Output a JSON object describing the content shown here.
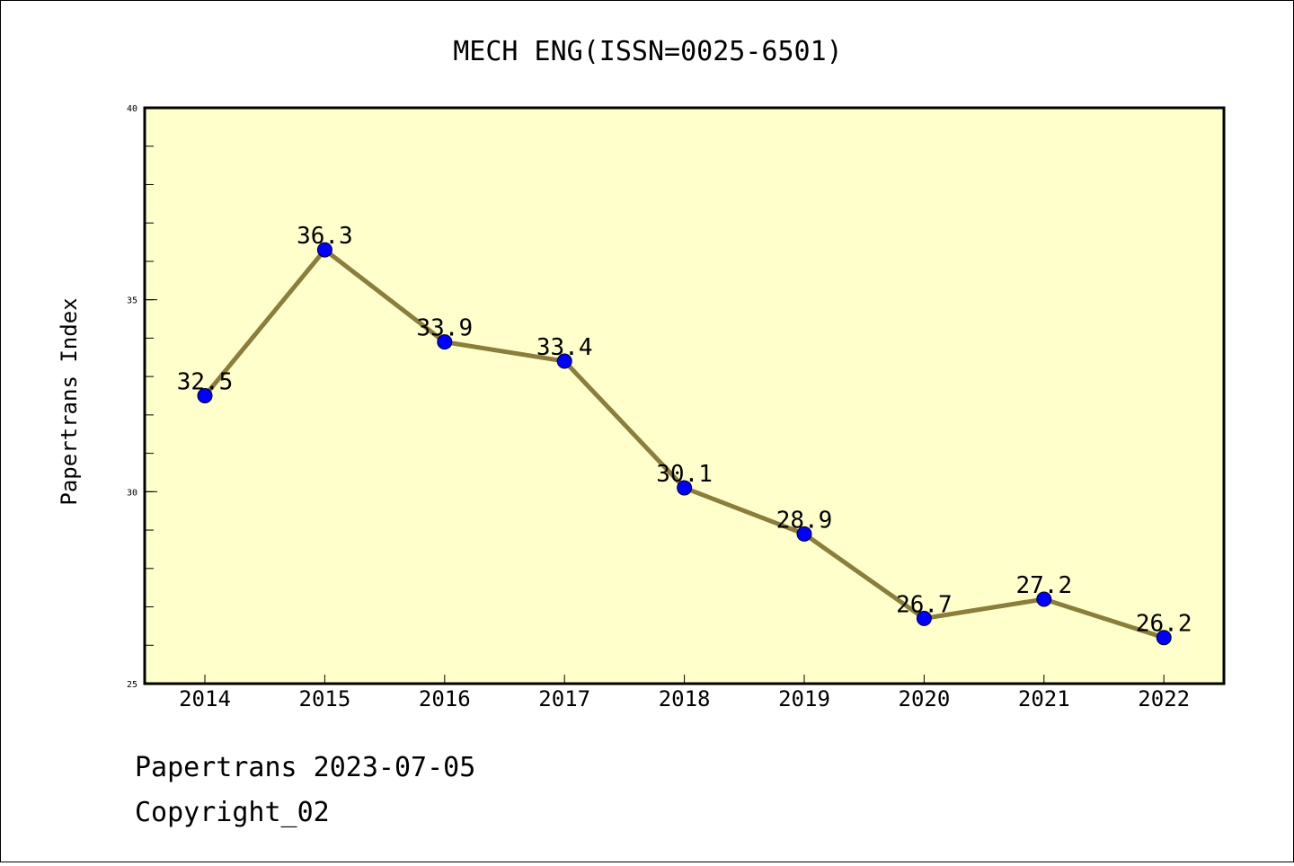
{
  "chart_data": {
    "type": "line",
    "title": "MECH ENG(ISSN=0025-6501)",
    "xlabel": "",
    "ylabel": "Papertrans Index",
    "x": [
      "2014",
      "2015",
      "2016",
      "2017",
      "2018",
      "2019",
      "2020",
      "2021",
      "2022"
    ],
    "series": [
      {
        "values": [
          32.5,
          36.3,
          33.9,
          33.4,
          30.1,
          28.9,
          26.7,
          27.2,
          26.2
        ]
      }
    ],
    "data_labels": [
      "32.5",
      "36.3",
      "33.9",
      "33.4",
      "30.1",
      "28.9",
      "26.7",
      "27.2",
      "26.2"
    ],
    "ylim": [
      25,
      40
    ],
    "yticks": [
      25,
      30,
      35,
      40
    ],
    "ytick_labels": [
      "25",
      "30",
      "35",
      "40"
    ],
    "grid": false,
    "legend": "none",
    "colors": {
      "plot_background": "#ffffcc",
      "line": "#8b7d3a",
      "marker": "#0000ff"
    }
  },
  "footer": {
    "source": "Papertrans 2023-07-05",
    "copyright": "Copyright_02"
  }
}
